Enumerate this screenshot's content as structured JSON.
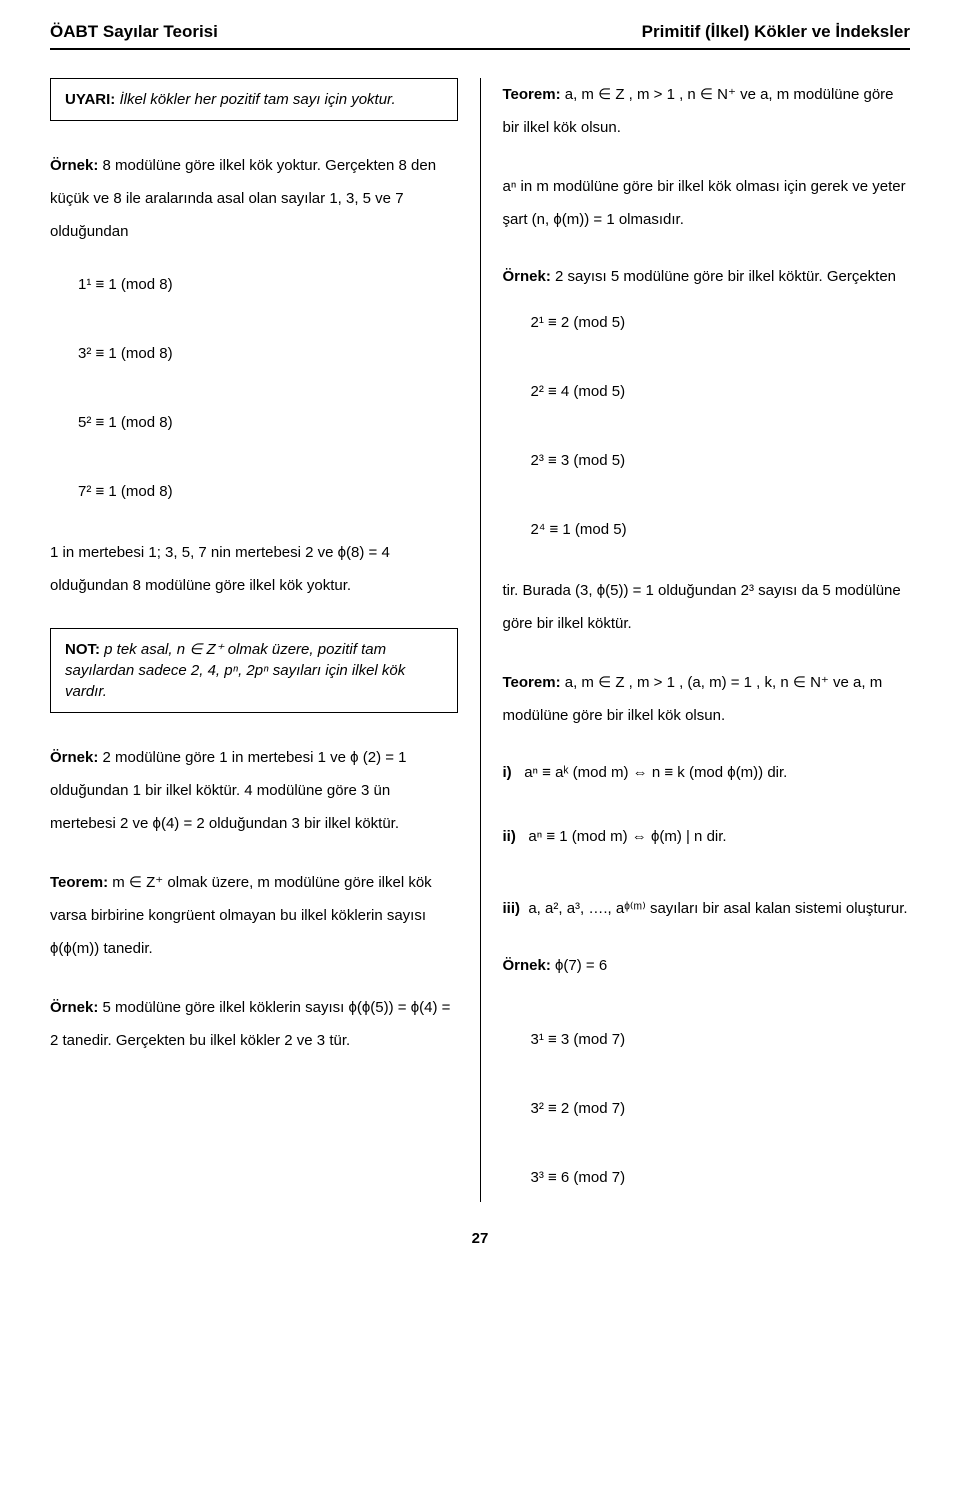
{
  "header": {
    "left": "ÖABT Sayılar Teorisi",
    "right": "Primitif (İlkel) Kökler ve İndeksler"
  },
  "left_col": {
    "box1_lead": "UYARI:",
    "box1_text": " İlkel kökler her pozitif tam sayı için yoktur.",
    "p1_lead": "Örnek:",
    "p1_rest": " 8 modülüne göre ilkel kök yoktur. Gerçekten 8 den küçük ve 8 ile aralarında asal olan sayılar 1, 3, 5 ve 7 olduğundan",
    "eq1": "1¹ ≡ 1 (mod 8)",
    "eq2": "3² ≡ 1 (mod 8)",
    "eq3": "5² ≡ 1 (mod 8)",
    "eq4": "7² ≡ 1 (mod 8)",
    "p2": "1 in mertebesi 1; 3, 5, 7 nin mertebesi 2 ve ϕ(8) = 4 olduğundan 8 modülüne göre ilkel kök yoktur.",
    "box2_lead": "NOT:",
    "box2_text": "  p tek asal, n ∈ Z⁺ olmak üzere, pozitif tam sayılardan sadece 2, 4, pⁿ, 2pⁿ sayıları için ilkel kök vardır.",
    "p3_lead": "Örnek:",
    "p3_rest": " 2 modülüne göre 1 in mertebesi 1 ve ϕ (2) = 1 olduğundan 1 bir ilkel köktür. 4 modülüne göre 3 ün mertebesi 2 ve ϕ(4) = 2 olduğundan 3 bir ilkel köktür.",
    "p4_lead": "Teorem:",
    "p4_rest": " m ∈ Z⁺  olmak üzere, m modülüne göre ilkel kök varsa birbirine kongrüent olmayan bu ilkel köklerin sayısı ϕ(ϕ(m)) tanedir.",
    "p5_lead": "Örnek:",
    "p5_rest": " 5 modülüne göre ilkel köklerin sayısı ϕ(ϕ(5)) = ϕ(4) = 2 tanedir. Gerçekten bu ilkel kökler 2 ve 3 tür."
  },
  "right_col": {
    "p1_lead": "Teorem:",
    "p1_rest": " a, m ∈ Z , m > 1 , n ∈ N⁺ ve a, m modülüne göre bir ilkel kök olsun.",
    "p2": "aⁿ in m modülüne göre bir ilkel kök olması için gerek ve yeter şart (n, ϕ(m)) = 1 olmasıdır.",
    "p3_lead": "Örnek:",
    "p3_rest": " 2 sayısı 5 modülüne göre bir ilkel köktür. Gerçekten",
    "eq1": "2¹ ≡ 2 (mod 5)",
    "eq2": "2² ≡ 4 (mod 5)",
    "eq3": "2³ ≡ 3 (mod 5)",
    "eq4": "2⁴ ≡ 1 (mod 5)",
    "p4": "tir. Burada (3, ϕ(5)) = 1 olduğundan 2³ sayısı da 5 modülüne göre bir ilkel köktür.",
    "p5_lead": "Teorem:",
    "p5_rest": " a, m ∈ Z , m > 1 , (a, m) = 1 , k, n ∈ N⁺ ve a, m modülüne göre bir ilkel kök olsun.",
    "li_i_lead": "i)",
    "li_i": "aⁿ ≡ aᵏ (mod m) ⇔ n ≡ k (mod ϕ(m)) dir.",
    "li_ii_lead": "ii)",
    "li_ii": "aⁿ ≡ 1 (mod m) ⇔ ϕ(m) | n dir.",
    "li_iii_lead": "iii)",
    "li_iii": "a, a², a³, …., aᶲ⁽ᵐ⁾ sayıları bir asal kalan sistemi oluşturur.",
    "p6_lead": "Örnek:",
    "p6_rest": " ϕ(7) = 6",
    "eq5": "3¹ ≡ 3 (mod 7)",
    "eq6": "3² ≡ 2 (mod 7)",
    "eq7": "3³ ≡ 6 (mod 7)"
  },
  "pagenum": "27"
}
